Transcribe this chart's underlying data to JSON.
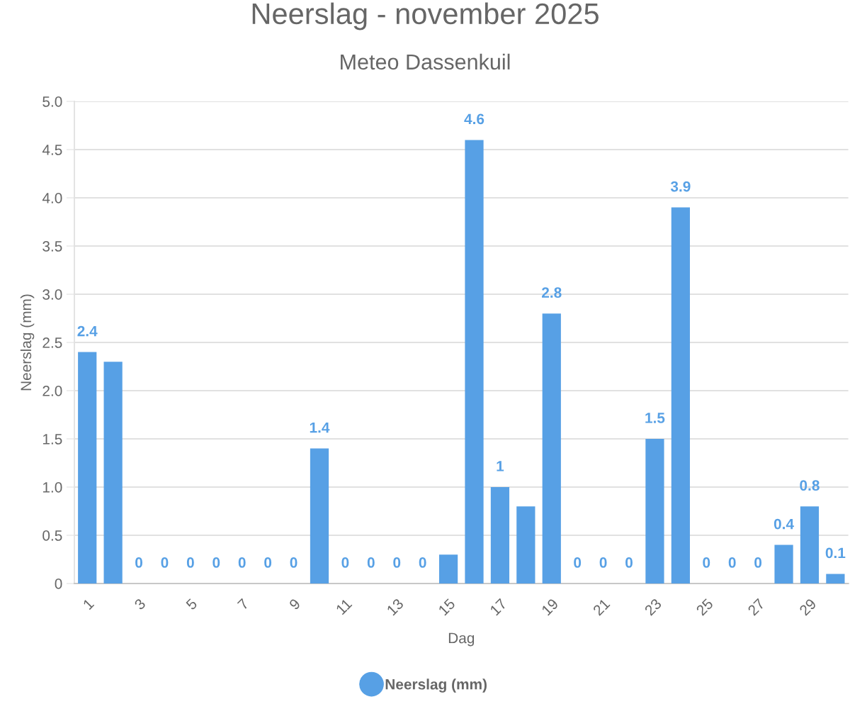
{
  "chart_data": {
    "type": "bar",
    "title": "Neerslag - november 2025",
    "subtitle": "Meteo Dassenkuil",
    "xlabel": "Dag",
    "ylabel": "Neerslag (mm)",
    "categories": [
      "1",
      null,
      "3",
      null,
      "5",
      null,
      "7",
      null,
      "9",
      null,
      "11",
      null,
      "13",
      null,
      "15",
      null,
      "17",
      null,
      "19",
      null,
      "21",
      null,
      "23",
      null,
      "25",
      null,
      "27",
      null,
      "29",
      null
    ],
    "series": [
      {
        "name": "Neerslag (mm)",
        "color": "#57a0e5",
        "values": [
          2.4,
          2.3,
          0,
          0,
          0,
          0,
          0,
          0,
          0,
          1.4,
          0,
          0,
          0,
          0,
          0.3,
          4.6,
          1,
          0.8,
          2.8,
          0,
          0,
          0,
          1.5,
          3.9,
          0,
          0,
          0,
          0.4,
          0.8,
          0.1
        ],
        "value_labels": [
          "2.4",
          null,
          "0",
          "0",
          "0",
          "0",
          "0",
          "0",
          "0",
          "1.4",
          "0",
          "0",
          "0",
          "0",
          null,
          "4.6",
          "1",
          null,
          "2.8",
          "0",
          "0",
          "0",
          "1.5",
          "3.9",
          "0",
          "0",
          "0",
          "0.4",
          "0.8",
          "0.1"
        ]
      }
    ],
    "ylim": [
      0,
      5
    ],
    "yticks": [
      0,
      0.5,
      {
        "value": 1,
        "label": "1.0"
      },
      1.5,
      {
        "value": 2,
        "label": "2.0"
      },
      2.5,
      {
        "value": 3,
        "label": "3.0"
      },
      3.5,
      {
        "value": 4,
        "label": "4.0"
      },
      4.5,
      {
        "value": 5,
        "label": "5.0"
      }
    ],
    "grid": "y",
    "legend": "bottom"
  }
}
